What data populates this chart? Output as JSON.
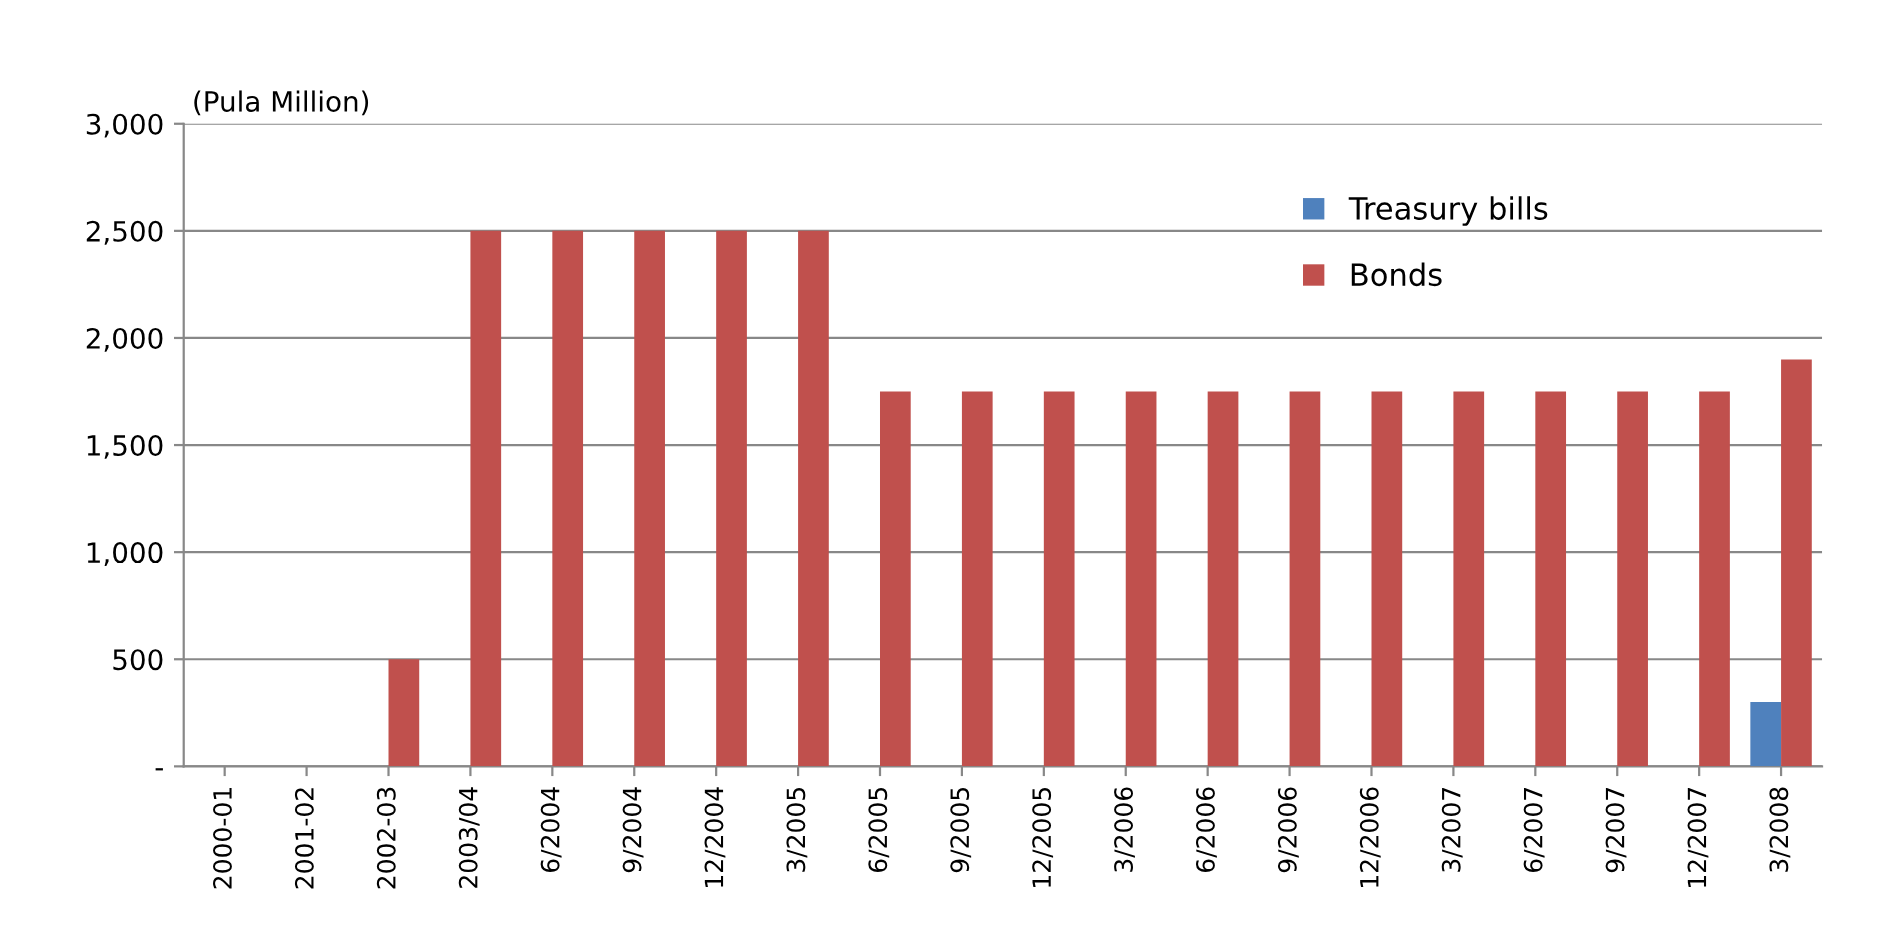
{
  "chart_data": {
    "type": "bar",
    "ylabel": "(Pula Million)",
    "categories": [
      "2000-01",
      "2001-02",
      "2002-03",
      "2003/04",
      "6/2004",
      "9/2004",
      "12/2004",
      "3/2005",
      "6/2005",
      "9/2005",
      "12/2005",
      "3/2006",
      "6/2006",
      "9/2006",
      "12/2006",
      "3/2007",
      "6/2007",
      "9/2007",
      "12/2007",
      "3/2008"
    ],
    "series": [
      {
        "name": "Treasury bills",
        "color": "#4f81bd",
        "values": [
          0,
          0,
          0,
          0,
          0,
          0,
          0,
          0,
          0,
          0,
          0,
          0,
          0,
          0,
          0,
          0,
          0,
          0,
          0,
          300
        ]
      },
      {
        "name": "Bonds",
        "color": "#c0504d",
        "values": [
          0,
          0,
          500,
          2500,
          2500,
          2500,
          2500,
          2500,
          1750,
          1750,
          1750,
          1750,
          1750,
          1750,
          1750,
          1750,
          1750,
          1750,
          1750,
          1900
        ]
      }
    ],
    "ylim": [
      0,
      3000
    ],
    "yticks": [
      {
        "value": 0,
        "label": "-"
      },
      500,
      {
        "value": 1000,
        "label": "1,000"
      },
      {
        "value": 1500,
        "label": "1,500"
      },
      {
        "value": 2000,
        "label": "2,000"
      },
      {
        "value": 2500,
        "label": "2,500"
      },
      {
        "value": 3000,
        "label": "3,000"
      }
    ],
    "grid": "y",
    "legend": "top right"
  }
}
